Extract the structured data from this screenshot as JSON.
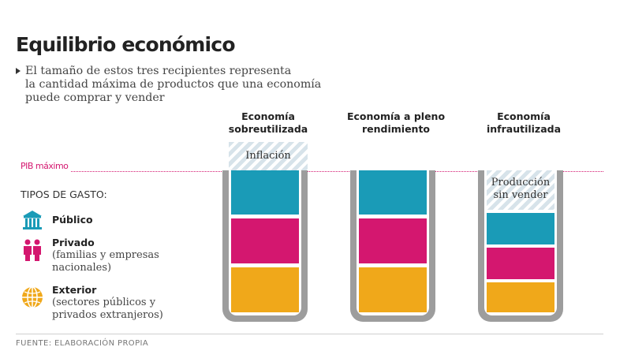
{
  "title": "Equilibrio económico",
  "subtitle_lines": [
    "El tamaño de estos tres recipientes representa",
    "la cantidad máxima de productos que una economía",
    "puede comprar y vender"
  ],
  "pib_label": "PIB máximo",
  "legend_title": "TIPOS DE GASTO:",
  "legend": [
    {
      "name": "Público",
      "desc": "",
      "color": "#1a9bb7",
      "icon": "government-building-icon"
    },
    {
      "name": "Privado",
      "desc": "(familias y empresas nacionales)",
      "color": "#d4176f",
      "icon": "people-icon"
    },
    {
      "name": "Exterior",
      "desc": "(sectores públicos y privados extranjeros)",
      "color": "#f0a81a",
      "icon": "globe-icon"
    }
  ],
  "columns": [
    {
      "title_line1": "Economía",
      "title_line2": "sobreutilizada",
      "overlay_label": "Inflación",
      "levels": {
        "publico": 1.0,
        "privado": 1.0,
        "exterior": 1.0
      }
    },
    {
      "title_line1": "Economía a pleno",
      "title_line2": "rendimiento",
      "overlay_label": "",
      "levels": {
        "publico": 1.0,
        "privado": 1.0,
        "exterior": 1.0
      }
    },
    {
      "title_line1": "Economía",
      "title_line2": "infrautilizada",
      "overlay_label_line1": "Producción",
      "overlay_label_line2": "sin vender",
      "levels": {
        "publico": 0.7,
        "privado": 0.7,
        "exterior": 0.7
      }
    }
  ],
  "source": "FUENTE: ELABORACIÓN PROPIA",
  "colors": {
    "publico": "#1a9bb7",
    "privado": "#d4176f",
    "exterior": "#f0a81a",
    "pib_line": "#d4176f",
    "container": "#9d9d9d"
  }
}
